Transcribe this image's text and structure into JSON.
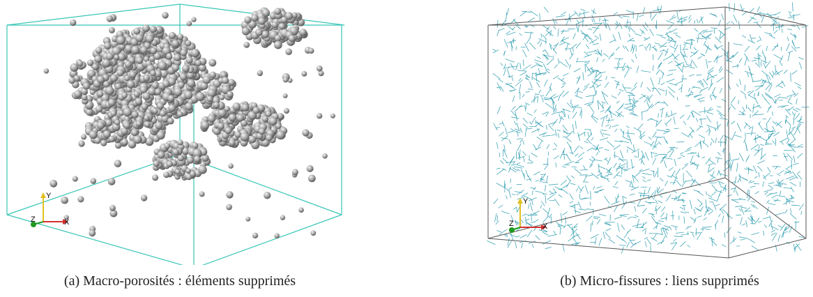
{
  "figure": {
    "panel_a": {
      "caption": "(a) Macro-porosités : éléments supprimés",
      "axes": {
        "x": "X",
        "y": "Y",
        "z": "Z"
      },
      "box_color": "#38c6b6",
      "particle_color": "#9a9a9a"
    },
    "panel_b": {
      "caption": "(b) Micro-fissures : liens supprimés",
      "axes": {
        "x": "X",
        "y": "Y",
        "z": "Z"
      },
      "box_color": "#555555",
      "link_color": "#2096aa"
    },
    "axis_colors": {
      "x": "#d23030",
      "y": "#e0c020",
      "z": "#229922"
    }
  }
}
